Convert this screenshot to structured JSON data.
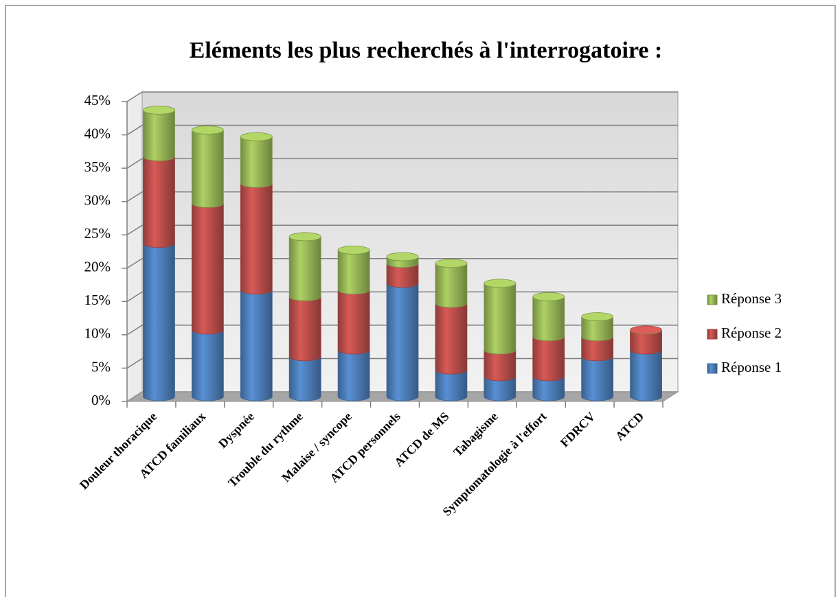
{
  "chart_data": {
    "type": "bar3d_stacked",
    "title": "Eléments  les plus recherchés à l'interrogatoire :",
    "categories": [
      "Douleur thoracique",
      "ATCD familiaux",
      "Dyspnée",
      "Trouble du rythme",
      "Malaise / syncope",
      "ATCD personnels",
      "ATCD de MS",
      "Tabagisme",
      "Symptomatologie à l'effort",
      "FDRCV",
      "ATCD"
    ],
    "series": [
      {
        "name": "Réponse 1",
        "color": "#4f81bd",
        "values": [
          23,
          10,
          16,
          6,
          7,
          17,
          4,
          3,
          3,
          6,
          7
        ]
      },
      {
        "name": "Réponse 2",
        "color": "#c0504d",
        "values": [
          13,
          19,
          16,
          9,
          9,
          3,
          10,
          4,
          6,
          3,
          3
        ]
      },
      {
        "name": "Réponse 3",
        "color": "#9bbb59",
        "values": [
          7,
          11,
          7,
          9,
          6,
          1,
          6,
          10,
          6,
          3,
          0
        ]
      }
    ],
    "ylim": [
      0,
      45
    ],
    "yticks": [
      {
        "value": 0,
        "label": "0%"
      },
      {
        "value": 5,
        "label": "5%"
      },
      {
        "value": 10,
        "label": "10%"
      },
      {
        "value": 15,
        "label": "15%"
      },
      {
        "value": 20,
        "label": "20%"
      },
      {
        "value": 25,
        "label": "25%"
      },
      {
        "value": 30,
        "label": "30%"
      },
      {
        "value": 35,
        "label": "35%"
      },
      {
        "value": 40,
        "label": "40%"
      },
      {
        "value": 45,
        "label": "45%"
      }
    ],
    "grid": true,
    "legend": "right"
  }
}
